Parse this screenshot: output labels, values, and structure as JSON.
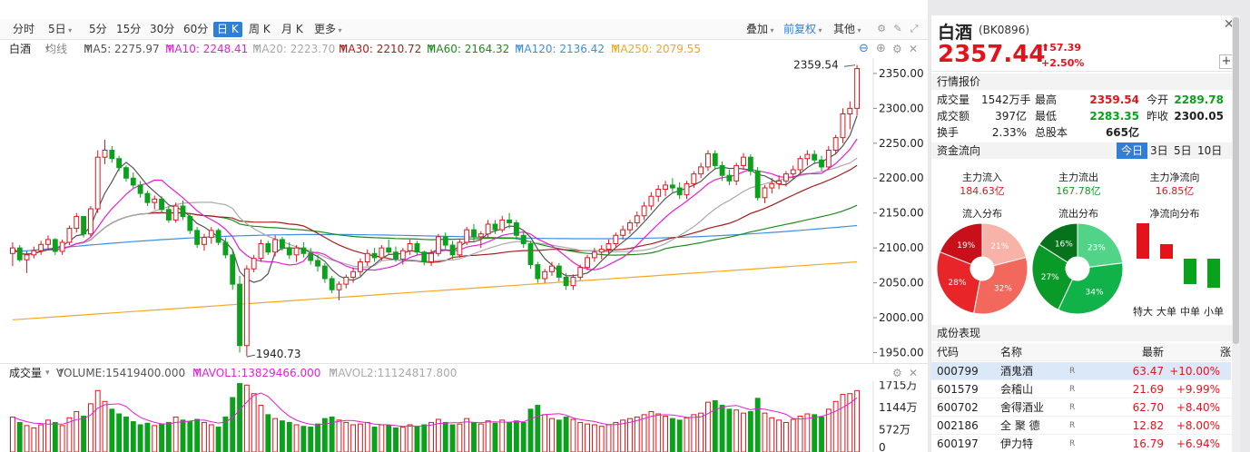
{
  "toolbar": {
    "timeframes": [
      "分时",
      "5日",
      "5分",
      "15分",
      "30分",
      "60分",
      "日 K",
      "周 K",
      "月 K",
      "更多"
    ],
    "active_index": 6,
    "right_items": {
      "overlay": "叠加",
      "adjust": "前复权",
      "other": "其他"
    }
  },
  "ma_bar": {
    "name": "白酒",
    "type": "均线",
    "ma5": "MA5: 2275.97",
    "ma10": "MA10: 2248.41",
    "ma20": "MA20: 2223.70",
    "ma30": "MA30: 2210.72",
    "ma60": "MA60: 2164.32",
    "ma120": "MA120: 2136.42",
    "ma250": "MA250: 2079.55",
    "arrow": "↑"
  },
  "vol_bar": {
    "title": "成交量",
    "volume": "VOLUME:15419400.000",
    "mavol1": "MAVOL1:13829466.000",
    "mavol2": "MAVOL2:11124817.800",
    "arrow": "↑"
  },
  "colors": {
    "up": "#e3131c",
    "down": "#0aa11c",
    "ma5": "#555555",
    "ma10": "#e61fd7",
    "ma20": "#aaaaaa",
    "ma30": "#a61c1c",
    "ma60": "#1d8a1d",
    "ma120": "#3f8fe0",
    "ma250": "#f5a623",
    "accent": "#2f7fd8"
  },
  "chart_data": {
    "type": "candlestick",
    "price_axis": {
      "ticks": [
        2350,
        2300,
        2250,
        2200,
        2150,
        2100,
        2050,
        2000,
        1950
      ],
      "ylim": [
        1935,
        2372
      ]
    },
    "annotations": {
      "high": "2359.54",
      "low": "1940.73"
    },
    "volume_axis": {
      "ticks": [
        "1715万",
        "1144万",
        "572万",
        "0"
      ],
      "max_wan": 1820
    },
    "candles": [
      [
        2092,
        2108,
        2074,
        2100,
        900
      ],
      [
        2100,
        2104,
        2080,
        2083,
        760
      ],
      [
        2083,
        2095,
        2064,
        2090,
        680
      ],
      [
        2090,
        2102,
        2085,
        2096,
        620
      ],
      [
        2096,
        2110,
        2090,
        2105,
        700
      ],
      [
        2105,
        2118,
        2098,
        2112,
        820
      ],
      [
        2112,
        2114,
        2090,
        2095,
        760
      ],
      [
        2095,
        2112,
        2090,
        2108,
        680
      ],
      [
        2108,
        2132,
        2104,
        2128,
        880
      ],
      [
        2128,
        2150,
        2122,
        2145,
        1040
      ],
      [
        2145,
        2142,
        2115,
        2120,
        920
      ],
      [
        2120,
        2160,
        2116,
        2156,
        1240
      ],
      [
        2156,
        2240,
        2150,
        2230,
        1580
      ],
      [
        2230,
        2255,
        2220,
        2240,
        1300
      ],
      [
        2240,
        2246,
        2222,
        2228,
        1100
      ],
      [
        2228,
        2232,
        2210,
        2215,
        980
      ],
      [
        2215,
        2218,
        2195,
        2200,
        900
      ],
      [
        2200,
        2208,
        2186,
        2190,
        780
      ],
      [
        2190,
        2196,
        2172,
        2178,
        700
      ],
      [
        2178,
        2182,
        2160,
        2165,
        740
      ],
      [
        2165,
        2175,
        2155,
        2170,
        680
      ],
      [
        2170,
        2174,
        2150,
        2155,
        720
      ],
      [
        2155,
        2160,
        2136,
        2140,
        760
      ],
      [
        2140,
        2165,
        2136,
        2160,
        900
      ],
      [
        2160,
        2168,
        2140,
        2145,
        820
      ],
      [
        2145,
        2148,
        2120,
        2125,
        780
      ],
      [
        2125,
        2130,
        2100,
        2105,
        840
      ],
      [
        2105,
        2120,
        2096,
        2115,
        760
      ],
      [
        2115,
        2130,
        2106,
        2125,
        700
      ],
      [
        2125,
        2128,
        2104,
        2108,
        640
      ],
      [
        2108,
        2115,
        2085,
        2090,
        900
      ],
      [
        2090,
        2098,
        2040,
        2048,
        1400
      ],
      [
        2048,
        2060,
        1950,
        1960,
        1760
      ],
      [
        1960,
        2075,
        1945,
        2070,
        1720
      ],
      [
        2070,
        2090,
        2065,
        2085,
        1500
      ],
      [
        2085,
        2112,
        2080,
        2106,
        1200
      ],
      [
        2106,
        2110,
        2090,
        2094,
        960
      ],
      [
        2094,
        2118,
        2088,
        2112,
        860
      ],
      [
        2112,
        2116,
        2096,
        2100,
        800
      ],
      [
        2100,
        2108,
        2084,
        2090,
        760
      ],
      [
        2090,
        2104,
        2080,
        2100,
        700
      ],
      [
        2100,
        2108,
        2086,
        2092,
        660
      ],
      [
        2092,
        2100,
        2076,
        2082,
        640
      ],
      [
        2082,
        2090,
        2066,
        2074,
        720
      ],
      [
        2074,
        2078,
        2050,
        2056,
        860
      ],
      [
        2056,
        2060,
        2035,
        2040,
        900
      ],
      [
        2040,
        2052,
        2025,
        2048,
        820
      ],
      [
        2048,
        2062,
        2042,
        2058,
        760
      ],
      [
        2058,
        2072,
        2050,
        2066,
        700
      ],
      [
        2066,
        2085,
        2060,
        2080,
        720
      ],
      [
        2080,
        2098,
        2074,
        2092,
        760
      ],
      [
        2092,
        2100,
        2080,
        2086,
        640
      ],
      [
        2086,
        2104,
        2082,
        2100,
        700
      ],
      [
        2100,
        2112,
        2090,
        2094,
        680
      ],
      [
        2094,
        2102,
        2080,
        2084,
        620
      ],
      [
        2084,
        2100,
        2076,
        2096,
        640
      ],
      [
        2096,
        2112,
        2090,
        2106,
        700
      ],
      [
        2106,
        2110,
        2090,
        2094,
        660
      ],
      [
        2094,
        2096,
        2075,
        2080,
        700
      ],
      [
        2080,
        2098,
        2074,
        2092,
        760
      ],
      [
        2092,
        2120,
        2088,
        2116,
        840
      ],
      [
        2116,
        2122,
        2098,
        2104,
        760
      ],
      [
        2104,
        2110,
        2084,
        2090,
        700
      ],
      [
        2090,
        2112,
        2086,
        2108,
        720
      ],
      [
        2108,
        2130,
        2104,
        2126,
        860
      ],
      [
        2126,
        2134,
        2110,
        2116,
        760
      ],
      [
        2116,
        2124,
        2100,
        2120,
        720
      ],
      [
        2120,
        2140,
        2114,
        2134,
        800
      ],
      [
        2134,
        2140,
        2120,
        2126,
        740
      ],
      [
        2126,
        2146,
        2122,
        2140,
        820
      ],
      [
        2140,
        2150,
        2128,
        2136,
        760
      ],
      [
        2136,
        2140,
        2112,
        2118,
        800
      ],
      [
        2118,
        2122,
        2100,
        2106,
        760
      ],
      [
        2106,
        2110,
        2070,
        2076,
        1100
      ],
      [
        2076,
        2080,
        2050,
        2056,
        1200
      ],
      [
        2056,
        2070,
        2050,
        2066,
        960
      ],
      [
        2066,
        2080,
        2060,
        2074,
        860
      ],
      [
        2074,
        2078,
        2052,
        2058,
        820
      ],
      [
        2058,
        2064,
        2040,
        2046,
        900
      ],
      [
        2046,
        2062,
        2040,
        2058,
        840
      ],
      [
        2058,
        2076,
        2054,
        2072,
        760
      ],
      [
        2072,
        2090,
        2068,
        2086,
        720
      ],
      [
        2086,
        2100,
        2080,
        2094,
        700
      ],
      [
        2094,
        2104,
        2084,
        2098,
        660
      ],
      [
        2098,
        2112,
        2092,
        2106,
        700
      ],
      [
        2106,
        2122,
        2100,
        2118,
        760
      ],
      [
        2118,
        2132,
        2112,
        2126,
        820
      ],
      [
        2126,
        2140,
        2120,
        2136,
        860
      ],
      [
        2136,
        2152,
        2130,
        2146,
        900
      ],
      [
        2146,
        2166,
        2140,
        2160,
        960
      ],
      [
        2160,
        2180,
        2154,
        2174,
        1040
      ],
      [
        2174,
        2190,
        2166,
        2184,
        980
      ],
      [
        2184,
        2196,
        2174,
        2190,
        920
      ],
      [
        2190,
        2200,
        2180,
        2186,
        860
      ],
      [
        2186,
        2194,
        2170,
        2176,
        820
      ],
      [
        2176,
        2196,
        2170,
        2192,
        880
      ],
      [
        2192,
        2210,
        2186,
        2206,
        960
      ],
      [
        2206,
        2222,
        2200,
        2216,
        1000
      ],
      [
        2216,
        2240,
        2210,
        2235,
        1280
      ],
      [
        2235,
        2240,
        2212,
        2218,
        1320
      ],
      [
        2218,
        2224,
        2196,
        2204,
        1200
      ],
      [
        2204,
        2212,
        2190,
        2196,
        1100
      ],
      [
        2196,
        2222,
        2190,
        2218,
        1080
      ],
      [
        2218,
        2236,
        2212,
        2230,
        1000
      ],
      [
        2230,
        2234,
        2204,
        2210,
        1040
      ],
      [
        2210,
        2216,
        2168,
        2172,
        1380
      ],
      [
        2172,
        2190,
        2164,
        2186,
        1000
      ],
      [
        2186,
        2200,
        2178,
        2192,
        880
      ],
      [
        2192,
        2204,
        2184,
        2196,
        820
      ],
      [
        2196,
        2210,
        2188,
        2206,
        760
      ],
      [
        2206,
        2218,
        2198,
        2212,
        840
      ],
      [
        2212,
        2232,
        2206,
        2228,
        920
      ],
      [
        2228,
        2240,
        2218,
        2234,
        980
      ],
      [
        2234,
        2240,
        2220,
        2226,
        960
      ],
      [
        2226,
        2232,
        2210,
        2216,
        900
      ],
      [
        2216,
        2246,
        2212,
        2240,
        1100
      ],
      [
        2240,
        2262,
        2234,
        2258,
        1300
      ],
      [
        2258,
        2300,
        2250,
        2292,
        1480
      ],
      [
        2292,
        2310,
        2270,
        2300,
        1500
      ],
      [
        2300,
        2362,
        2290,
        2357,
        1580
      ]
    ]
  },
  "right_panel": {
    "name": "白酒",
    "code": "(BK0896)",
    "price": "2357.44",
    "change": "57.39",
    "change_pct": "+2.50%",
    "quote_title": "行情报价",
    "quote": [
      {
        "k": "成交量",
        "v": "1542万手",
        "k2": "最高",
        "v2": "2359.54",
        "k3": "今开",
        "v3": "2289.78"
      },
      {
        "k": "成交额",
        "v": "397亿",
        "k2": "最低",
        "v2": "2283.35",
        "k3": "昨收",
        "v3": "2300.05"
      },
      {
        "k": "换手",
        "v": "2.33%",
        "k2": "总股本",
        "v2": "665亿",
        "k3": "",
        "v3": ""
      }
    ],
    "flow_title": "资金流向",
    "flow_tabs": [
      "今日",
      "3日",
      "5日",
      "10日"
    ],
    "flow_labels": {
      "in": "主力流入",
      "out": "主力流出",
      "net": "主力净流向"
    },
    "flow_values": {
      "in": "184.63亿",
      "out": "167.78亿",
      "net": "16.85亿"
    },
    "dist_titles": {
      "in": "流入分布",
      "out": "流出分布",
      "net": "净流向分布"
    },
    "in_dist": [
      {
        "pct": 21,
        "label": "21%",
        "color": "#f8b3a8"
      },
      {
        "pct": 32,
        "label": "32%",
        "color": "#f3685d"
      },
      {
        "pct": 28,
        "label": "28%",
        "color": "#e8262a"
      },
      {
        "pct": 19,
        "label": "19%",
        "color": "#c8101a"
      }
    ],
    "out_dist": [
      {
        "pct": 23,
        "label": "23%",
        "color": "#52d488"
      },
      {
        "pct": 34,
        "label": "34%",
        "color": "#12b24a"
      },
      {
        "pct": 27,
        "label": "27%",
        "color": "#0a9a28"
      },
      {
        "pct": 16,
        "label": "16%",
        "color": "#06731c"
      }
    ],
    "net_bars": [
      {
        "label": "特大",
        "value": 3.9
      },
      {
        "label": "大单",
        "value": 1.6
      },
      {
        "label": "中单",
        "value": -2.8
      },
      {
        "label": "小单",
        "value": -3.2
      }
    ],
    "stocks_title": "成份表现",
    "table_head": {
      "code": "代码",
      "name": "名称",
      "last": "最新",
      "chg": "涨幅"
    },
    "stocks": [
      {
        "code": "000799",
        "name": "酒鬼酒",
        "r": "R",
        "last": "63.47",
        "chg": "+10.00%"
      },
      {
        "code": "601579",
        "name": "会稽山",
        "r": "R",
        "last": "21.69",
        "chg": "+9.99%"
      },
      {
        "code": "600702",
        "name": "舍得酒业",
        "r": "R",
        "last": "62.70",
        "chg": "+8.40%"
      },
      {
        "code": "002186",
        "name": "全 聚 德",
        "r": "R",
        "last": "12.82",
        "chg": "+8.00%"
      },
      {
        "code": "600197",
        "name": "伊力特",
        "r": "R",
        "last": "16.79",
        "chg": "+6.94%"
      }
    ]
  }
}
